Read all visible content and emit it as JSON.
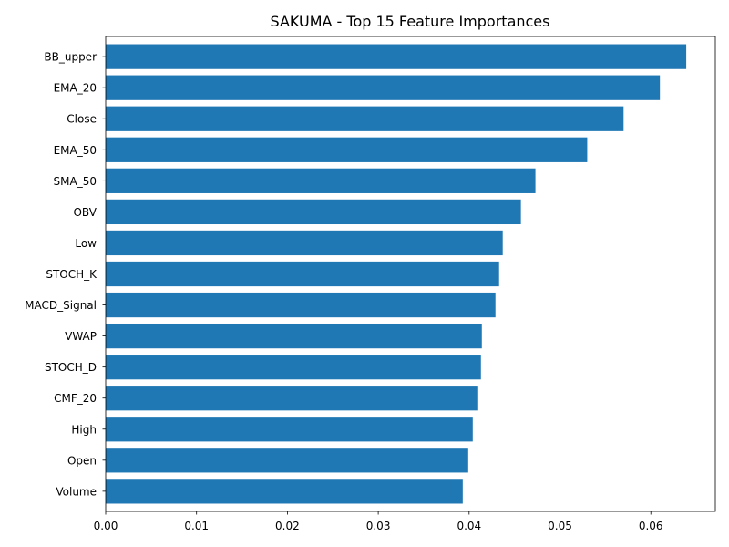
{
  "chart_data": {
    "type": "bar",
    "orientation": "horizontal",
    "title": "SAKUMA - Top 15 Feature Importances",
    "xlabel": "",
    "ylabel": "",
    "categories": [
      "BB_upper",
      "EMA_20",
      "Close",
      "EMA_50",
      "SMA_50",
      "OBV",
      "Low",
      "STOCH_K",
      "MACD_Signal",
      "VWAP",
      "STOCH_D",
      "CMF_20",
      "High",
      "Open",
      "Volume"
    ],
    "values": [
      0.0639,
      0.061,
      0.057,
      0.053,
      0.0473,
      0.0457,
      0.0437,
      0.0433,
      0.0429,
      0.0414,
      0.0413,
      0.041,
      0.0404,
      0.0399,
      0.0393
    ],
    "xlim": [
      0,
      0.0671
    ],
    "xticks": [
      "0.00",
      "0.01",
      "0.02",
      "0.03",
      "0.04",
      "0.05",
      "0.06"
    ],
    "xtick_values": [
      0,
      0.01,
      0.02,
      0.03,
      0.04,
      0.05,
      0.06
    ],
    "bar_color": "#1f77b4",
    "grid": false,
    "legend": "none"
  }
}
